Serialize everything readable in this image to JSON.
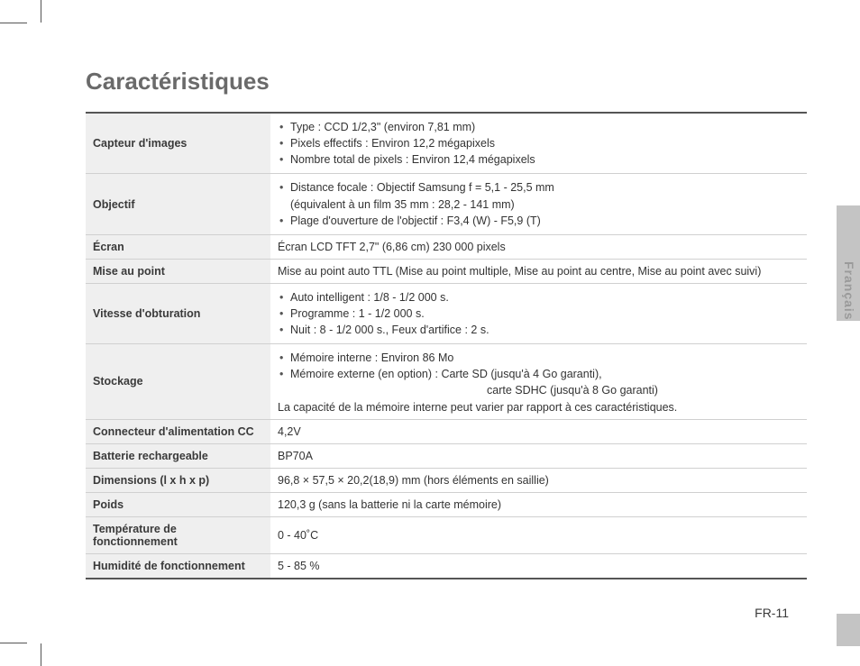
{
  "title": "Caractéristiques",
  "pageNumber": "FR-11",
  "langTab": "Français",
  "rows": [
    {
      "label": "Capteur d'images",
      "bullets": [
        "Type : CCD 1/2,3\" (environ 7,81 mm)",
        "Pixels effectifs : Environ 12,2 mégapixels",
        "Nombre total de pixels : Environ 12,4 mégapixels"
      ]
    },
    {
      "label": "Objectif",
      "bullets": [
        "Distance focale : Objectif Samsung f = 5,1 - 25,5 mm",
        "Plage d'ouverture de l'objectif : F3,4 (W) - F5,9 (T)"
      ],
      "sub_after_0": "(équivalent à un film 35 mm : 28,2 - 141 mm)"
    },
    {
      "label": "Écran",
      "text": "Écran LCD TFT 2,7\" (6,86 cm) 230 000 pixels"
    },
    {
      "label": "Mise au point",
      "text": "Mise au point auto TTL (Mise au point multiple, Mise au point au centre, Mise au point avec suivi)"
    },
    {
      "label": "Vitesse d'obturation",
      "bullets": [
        "Auto intelligent : 1/8 - 1/2 000 s.",
        "Programme : 1 - 1/2 000 s.",
        "Nuit : 8 - 1/2 000 s., Feux d'artifice : 2 s."
      ]
    },
    {
      "label": "Stockage",
      "bullets": [
        "Mémoire interne : Environ 86 Mo",
        "Mémoire externe (en option) : Carte SD (jusqu'à 4 Go garanti),"
      ],
      "far_line": "carte SDHC (jusqu'à 8 Go garanti)",
      "note": "La capacité de la mémoire interne peut varier par rapport à ces caractéristiques."
    },
    {
      "label": "Connecteur d'alimentation CC",
      "text": "4,2V"
    },
    {
      "label": "Batterie rechargeable",
      "text": "BP70A"
    },
    {
      "label": "Dimensions (l x h x p)",
      "text": "96,8 × 57,5 × 20,2(18,9) mm (hors éléments en saillie)"
    },
    {
      "label": "Poids",
      "text": "120,3 g (sans la batterie ni la carte mémoire)"
    },
    {
      "label": "Température de fonctionnement",
      "text": "0 - 40˚C"
    },
    {
      "label": "Humidité de fonctionnement",
      "text": "5 - 85 %"
    }
  ]
}
